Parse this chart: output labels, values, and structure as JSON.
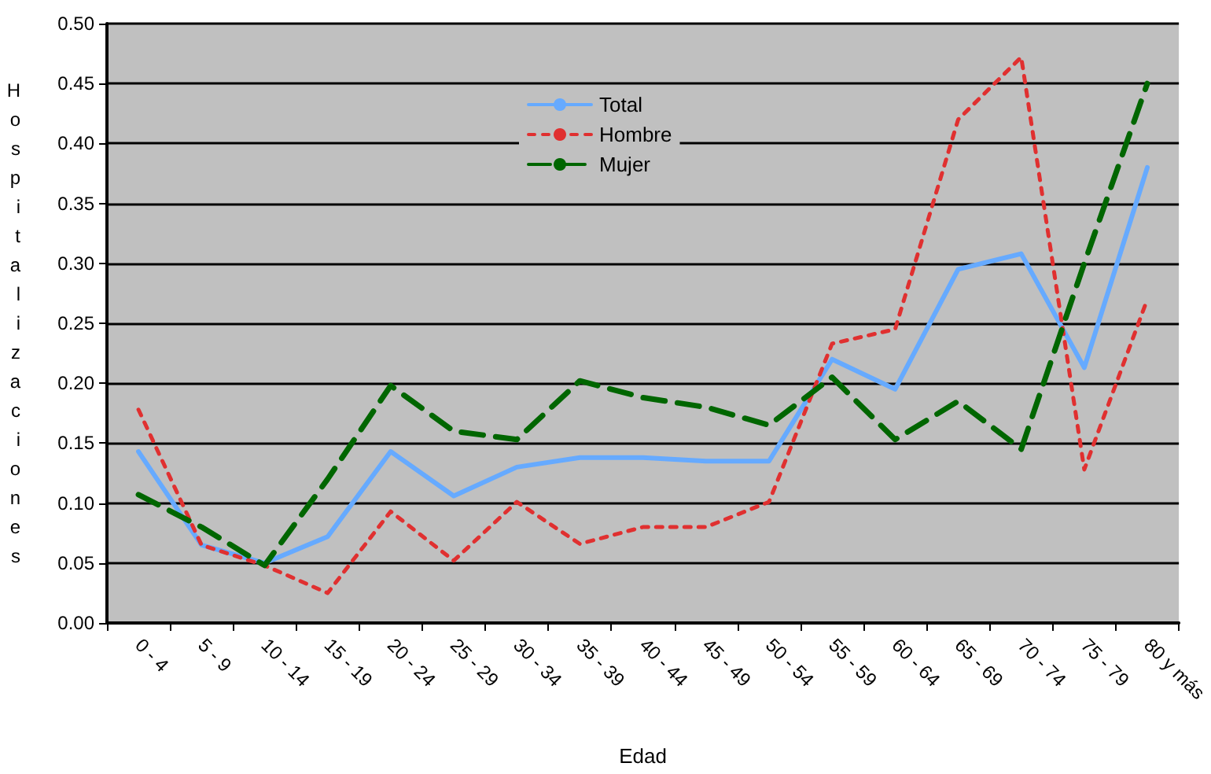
{
  "chart_data": {
    "type": "line",
    "xlabel": "Edad",
    "ylabel": "Hospitalizaciones",
    "categories": [
      "0 - 4",
      "5 - 9",
      "10 - 14",
      "15 - 19",
      "20 - 24",
      "25 - 29",
      "30 - 34",
      "35 - 39",
      "40 - 44",
      "45 - 49",
      "50 - 54",
      "55 - 59",
      "60 - 64",
      "65 - 69",
      "70 - 74",
      "75 - 79",
      "80 y más"
    ],
    "series": [
      {
        "name": "Total",
        "color": "#66aaff",
        "line_style": "solid",
        "values": [
          0.143,
          0.065,
          0.05,
          0.072,
          0.143,
          0.106,
          0.13,
          0.138,
          0.138,
          0.135,
          0.135,
          0.22,
          0.195,
          0.295,
          0.308,
          0.213,
          0.38
        ]
      },
      {
        "name": "Hombre",
        "color": "#e03030",
        "line_style": "dotted",
        "values": [
          0.178,
          0.065,
          0.048,
          0.025,
          0.093,
          0.052,
          0.101,
          0.066,
          0.08,
          0.08,
          0.101,
          0.233,
          0.245,
          0.42,
          0.472,
          0.128,
          0.27
        ]
      },
      {
        "name": "Mujer",
        "color": "#006600",
        "line_style": "dashed",
        "values": [
          0.107,
          0.08,
          0.048,
          0.12,
          0.198,
          0.16,
          0.153,
          0.202,
          0.188,
          0.18,
          0.165,
          0.205,
          0.153,
          0.185,
          0.145,
          0.3,
          0.45
        ]
      }
    ],
    "ylim": [
      0,
      0.5
    ],
    "yticks": [
      {
        "value": 0,
        "label": "0.00"
      },
      {
        "value": 0.05,
        "label": "0.05"
      },
      {
        "value": 0.1,
        "label": "0.10"
      },
      {
        "value": 0.15,
        "label": "0.15"
      },
      {
        "value": 0.2,
        "label": "0.20"
      },
      {
        "value": 0.25,
        "label": "0.25"
      },
      {
        "value": 0.3,
        "label": "0.30"
      },
      {
        "value": 0.35,
        "label": "0.35"
      },
      {
        "value": 0.4,
        "label": "0.40"
      },
      {
        "value": 0.45,
        "label": "0.45"
      },
      {
        "value": 0.5,
        "label": "0.50"
      }
    ],
    "grid": "y",
    "legend": "top",
    "marker": "none"
  }
}
